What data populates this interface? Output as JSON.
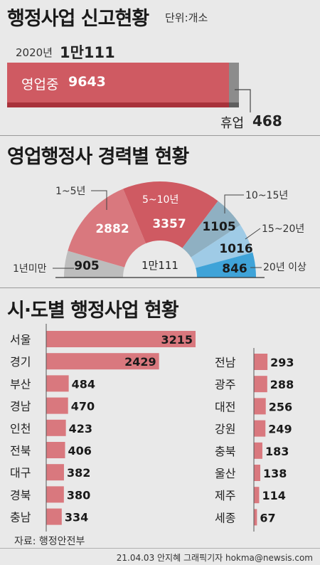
{
  "section1": {
    "title": "행정사업 신고현황",
    "unit": "단위:개소",
    "year": "2020년",
    "total": "1만111",
    "open_label": "영업중",
    "open_value": 9643,
    "closed_label": "휴업",
    "closed_value": 468,
    "colors": {
      "open": "#cf5a62",
      "open_dark": "#a8323b",
      "closed": "#8c8c8c"
    }
  },
  "section2": {
    "title": "영업행정사 경력별 현황",
    "center_label": "1만111"
  },
  "section3": {
    "title": "시·도별 행정사업 현황"
  },
  "footer": {
    "source": "자료: 행정안전부",
    "credit": "21.04.03 안지혜 그래픽기자 hokma@newsis.com"
  },
  "chart_data": [
    {
      "type": "bar",
      "title": "행정사업 신고현황",
      "unit": "개소",
      "categories": [
        "영업중",
        "휴업"
      ],
      "values": [
        9643,
        468
      ],
      "total": 10111
    },
    {
      "type": "pie",
      "title": "영업행정사 경력별 현황",
      "categories": [
        "1년미만",
        "1~5년",
        "5~10년",
        "10~15년",
        "15~20년",
        "20년 이상"
      ],
      "values": [
        905,
        2882,
        3357,
        1105,
        1016,
        846
      ],
      "colors": [
        "#bdbdbd",
        "#d9787e",
        "#cf5a62",
        "#8fb0c2",
        "#9fcbe6",
        "#3fa3d8"
      ]
    },
    {
      "type": "bar",
      "title": "시·도별 행정사업 현황",
      "categories": [
        "서울",
        "경기",
        "부산",
        "경남",
        "인천",
        "전북",
        "대구",
        "경북",
        "충남",
        "전남",
        "광주",
        "대전",
        "강원",
        "충북",
        "울산",
        "제주",
        "세종"
      ],
      "values": [
        3215,
        2429,
        484,
        470,
        423,
        406,
        382,
        380,
        334,
        293,
        288,
        256,
        249,
        183,
        138,
        114,
        67
      ],
      "color": "#d9787e"
    }
  ]
}
